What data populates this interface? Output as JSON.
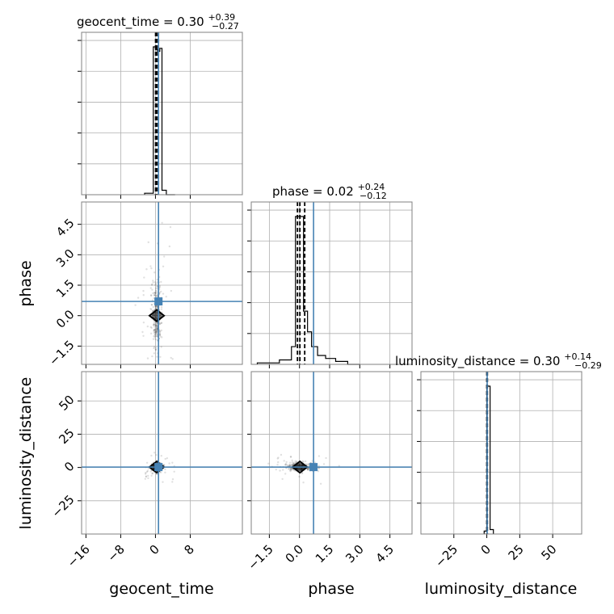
{
  "chart_data": {
    "type": "corner",
    "parameters": [
      "geocent_time",
      "phase",
      "luminosity_distance"
    ],
    "truth_color": "#4682b4",
    "titles": [
      {
        "param": "geocent_time",
        "label": "geocent_time = 0.30",
        "plus": "+0.39",
        "minus": "−0.27"
      },
      {
        "param": "phase",
        "label": "phase = 0.02",
        "plus": "+0.24",
        "minus": "−0.12"
      },
      {
        "param": "luminosity_distance",
        "label": "luminosity_distance = 0.30",
        "plus": "+0.14",
        "minus": "−0.29"
      }
    ],
    "axes": {
      "geocent_time": {
        "range": [
          -17,
          20
        ],
        "ticks": [
          -16,
          -8,
          0,
          8
        ],
        "tick_labels": [
          "−16",
          "−8",
          "0",
          "8"
        ],
        "truth": 0.7
      },
      "phase": {
        "range": [
          -2.4,
          5.6
        ],
        "ticks": [
          -1.5,
          0,
          1.5,
          3,
          4.5
        ],
        "tick_labels": [
          "−1.5",
          "0.0",
          "1.5",
          "3.0",
          "4.5"
        ],
        "truth": 0.7
      },
      "luminosity_distance": {
        "range": [
          -50,
          72
        ],
        "ticks": [
          -25,
          0,
          25,
          50
        ],
        "tick_labels": [
          "−25",
          "0",
          "25",
          "50"
        ],
        "truth": 0.3
      }
    },
    "histograms": [
      {
        "param": "geocent_time",
        "bin_edges": [
          -2.5,
          -0.5,
          0,
          0.5,
          1,
          1.5,
          2.5,
          4.5
        ],
        "counts": [
          0.01,
          1.0,
          0.98,
          0.97,
          0.99,
          0.03,
          0.0
        ],
        "quantiles": [
          0.03,
          0.3,
          0.69
        ],
        "truth": 0.7
      },
      {
        "param": "phase",
        "bin_edges": [
          -2.1,
          -1.0,
          -0.4,
          -0.2,
          0.0,
          0.2,
          0.4,
          0.6,
          0.9,
          1.3,
          1.8,
          2.4,
          3.0
        ],
        "counts": [
          0.01,
          0.03,
          0.12,
          1.0,
          1.0,
          0.36,
          0.22,
          0.12,
          0.06,
          0.04,
          0.02,
          0.0
        ],
        "quantiles": [
          -0.1,
          0.02,
          0.26
        ],
        "truth": 0.7
      },
      {
        "param": "luminosity_distance",
        "bin_edges": [
          -2,
          0,
          2.5,
          5
        ],
        "counts": [
          0.02,
          1.0,
          0.03
        ],
        "quantiles": [
          0.01,
          0.3,
          0.44
        ],
        "truth": 0.3
      }
    ],
    "scatter_2d": [
      {
        "x": "geocent_time",
        "y": "phase",
        "center": [
          0.3,
          0.0
        ],
        "spread": [
          0.6,
          0.8
        ],
        "truth": [
          0.7,
          0.7
        ]
      },
      {
        "x": "geocent_time",
        "y": "luminosity_distance",
        "center": [
          0.3,
          0.3
        ],
        "spread": [
          0.6,
          1.5
        ],
        "truth": [
          0.7,
          0.3
        ]
      },
      {
        "x": "phase",
        "y": "luminosity_distance",
        "center": [
          0.02,
          0.3
        ],
        "spread": [
          0.35,
          1.5
        ],
        "truth": [
          0.7,
          0.3
        ]
      }
    ],
    "xlabels": [
      "geocent_time",
      "phase",
      "luminosity_distance"
    ],
    "ylabels": [
      "phase",
      "luminosity_distance"
    ],
    "grid": true,
    "legend": "none"
  }
}
